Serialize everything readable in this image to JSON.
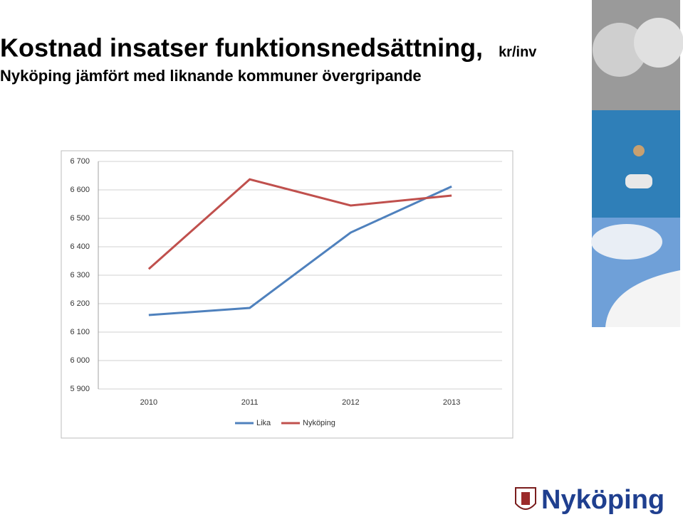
{
  "chart_data": {
    "type": "line",
    "title": "Kostnad insatser funktionsnedsättning,",
    "title_unit": "kr/inv",
    "subtitle": "Nyköping jämfört med liknande kommuner övergripande",
    "categories": [
      "2010",
      "2011",
      "2012",
      "2013"
    ],
    "series": [
      {
        "name": "Lika",
        "color": "#4f81bd",
        "values": [
          6160,
          6185,
          6450,
          6612
        ]
      },
      {
        "name": "Nyköping",
        "color": "#c0504d",
        "values": [
          6322,
          6637,
          6545,
          6580
        ]
      }
    ],
    "ylim": [
      5900,
      6700
    ],
    "yticks": [
      {
        "value": 5900,
        "label": "5 900"
      },
      {
        "value": 6000,
        "label": "6 000"
      },
      {
        "value": 6100,
        "label": "6 100"
      },
      {
        "value": 6200,
        "label": "6 200"
      },
      {
        "value": 6300,
        "label": "6 300"
      },
      {
        "value": 6400,
        "label": "6 400"
      },
      {
        "value": 6500,
        "label": "6 500"
      },
      {
        "value": 6600,
        "label": "6 600"
      },
      {
        "value": 6700,
        "label": "6 700"
      }
    ],
    "grid": true,
    "legend": "bottom"
  },
  "logo": {
    "text": "Nyköping"
  }
}
